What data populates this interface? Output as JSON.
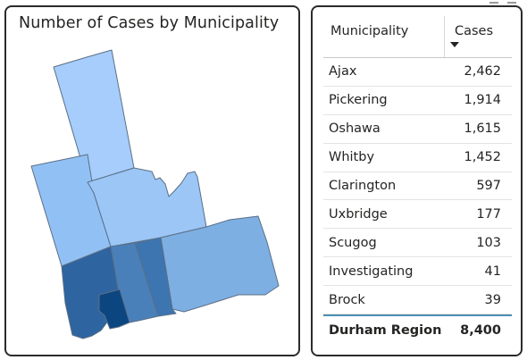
{
  "map": {
    "title": "Number of Cases by Municipality",
    "colors": {
      "brock": "#a6cdfb",
      "uxbridge": "#91c1f4",
      "scugog": "#9bc6f6",
      "clarington": "#7eafe3",
      "whitby": "#4a80ba",
      "oshawa": "#3d75b0",
      "pickering": "#2e64a0",
      "ajax": "#0b4680"
    }
  },
  "table": {
    "headers": {
      "municipality": "Municipality",
      "cases": "Cases"
    },
    "sort": {
      "column": "Cases",
      "direction": "descending"
    },
    "rows": [
      {
        "name": "Ajax",
        "cases": "2,462"
      },
      {
        "name": "Pickering",
        "cases": "1,914"
      },
      {
        "name": "Oshawa",
        "cases": "1,615"
      },
      {
        "name": "Whitby",
        "cases": "1,452"
      },
      {
        "name": "Clarington",
        "cases": "597"
      },
      {
        "name": "Uxbridge",
        "cases": "177"
      },
      {
        "name": "Scugog",
        "cases": "103"
      },
      {
        "name": "Investigating",
        "cases": "41"
      },
      {
        "name": "Brock",
        "cases": "39"
      }
    ],
    "total": {
      "name": "Durham Region",
      "cases": "8,400"
    }
  }
}
